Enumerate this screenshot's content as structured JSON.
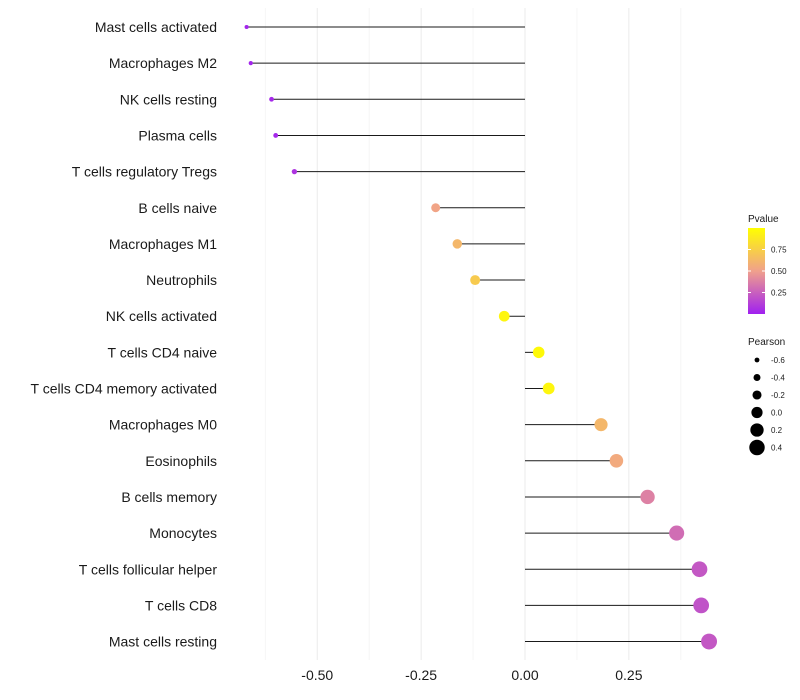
{
  "chart_data": {
    "type": "lollipop",
    "title": "",
    "xlabel": "",
    "ylabel": "",
    "xlim": [
      -0.68,
      0.46
    ],
    "xticks": [
      -0.5,
      -0.25,
      0.0,
      0.25
    ],
    "xtick_labels": [
      "-0.50",
      "-0.25",
      "0.00",
      "0.25"
    ],
    "grid": true,
    "categories": [
      "Mast cells activated",
      "Macrophages M2",
      "NK cells resting",
      "Plasma cells",
      "T cells regulatory  Tregs",
      "B cells naive",
      "Macrophages M1",
      "Neutrophils",
      "NK cells activated",
      "T cells CD4 naive",
      "T cells CD4 memory activated",
      "Macrophages M0",
      "Eosinophils",
      "B cells memory",
      "Monocytes",
      "T cells follicular helper",
      "T cells CD8",
      "Mast cells resting"
    ],
    "values": [
      -0.67,
      -0.66,
      -0.61,
      -0.6,
      -0.555,
      -0.215,
      -0.163,
      -0.12,
      -0.05,
      0.033,
      0.057,
      0.183,
      0.22,
      0.295,
      0.365,
      0.42,
      0.424,
      0.443
    ],
    "pvalues": [
      0.02,
      0.02,
      0.03,
      0.03,
      0.08,
      0.52,
      0.62,
      0.72,
      0.95,
      0.97,
      0.95,
      0.62,
      0.55,
      0.38,
      0.3,
      0.22,
      0.2,
      0.22
    ],
    "legend_color": {
      "title": "Pvalue",
      "ticks": [
        0.75,
        0.5,
        0.25
      ],
      "tick_labels": [
        "0.75",
        "0.50",
        "0.25"
      ],
      "range": [
        0.0,
        1.0
      ],
      "color_low": "#a020f0",
      "color_mid": "#f0a08c",
      "color_high": "#ffff00",
      "position": "right"
    },
    "legend_size": {
      "title": "Pearson",
      "values": [
        -0.6,
        -0.4,
        -0.2,
        0.0,
        0.2,
        0.4
      ],
      "labels": [
        "-0.6",
        "-0.4",
        "-0.2",
        "0.0",
        "0.2",
        "0.4"
      ],
      "position": "right"
    }
  }
}
